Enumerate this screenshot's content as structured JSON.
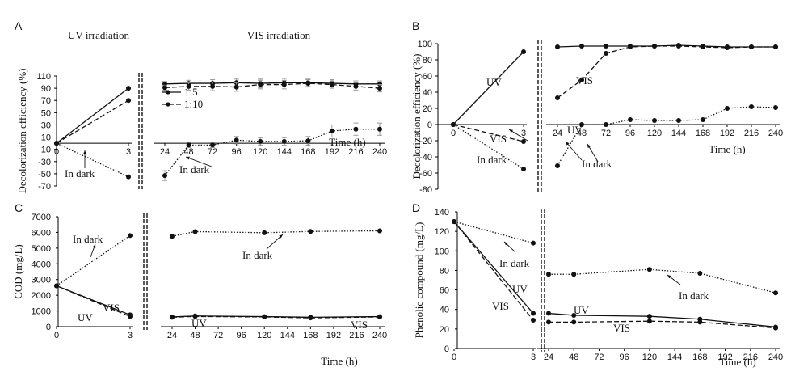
{
  "chart_data": [
    {
      "panel": "A",
      "type": "line",
      "ylabel": "Decolorization efficiency (%)",
      "xlabel": "Time (h)",
      "ylim": [
        -70,
        110
      ],
      "yticks": [
        "110",
        "90",
        "70",
        "50",
        "30",
        "10",
        "-10",
        "-30",
        "-50",
        "-70"
      ],
      "left_title": "UV irradiation",
      "right_title": "VIS irradiation",
      "left_xticks": [
        "0",
        "3"
      ],
      "right_xticks": [
        "24",
        "48",
        "72",
        "96",
        "120",
        "144",
        "168",
        "192",
        "216",
        "240"
      ],
      "legend": [
        "1:5",
        "1:10"
      ],
      "annotations": [
        "In dark",
        "In dark"
      ],
      "series": [
        {
          "name": "1:5",
          "style": "solid",
          "left": [
            [
              0,
              0
            ],
            [
              3,
              90
            ]
          ],
          "right": [
            [
              24,
              97
            ],
            [
              48,
              98
            ],
            [
              72,
              98
            ],
            [
              96,
              99
            ],
            [
              120,
              98
            ],
            [
              144,
              99
            ],
            [
              168,
              99
            ],
            [
              192,
              98
            ],
            [
              216,
              97
            ],
            [
              240,
              97
            ]
          ],
          "error": [
            4,
            5,
            6,
            6,
            7,
            7,
            6,
            6,
            5,
            5
          ]
        },
        {
          "name": "1:10",
          "style": "dashed",
          "left": [
            [
              0,
              0
            ],
            [
              3,
              70
            ]
          ],
          "right": [
            [
              24,
              91
            ],
            [
              48,
              93
            ],
            [
              72,
              93
            ],
            [
              96,
              92
            ],
            [
              120,
              96
            ],
            [
              144,
              96
            ],
            [
              168,
              98
            ],
            [
              192,
              96
            ],
            [
              216,
              93
            ],
            [
              240,
              90
            ]
          ],
          "error": [
            4,
            6,
            7,
            7,
            7,
            7,
            6,
            6,
            6,
            6
          ]
        },
        {
          "name": "In dark",
          "style": "dotted",
          "left": [
            [
              0,
              0
            ],
            [
              3,
              -55
            ]
          ],
          "right": [
            [
              24,
              -53
            ],
            [
              48,
              -3
            ],
            [
              72,
              -3
            ],
            [
              96,
              5
            ],
            [
              120,
              3
            ],
            [
              144,
              3
            ],
            [
              168,
              4
            ],
            [
              192,
              20
            ],
            [
              216,
              23
            ],
            [
              240,
              23
            ]
          ],
          "error": [
            8,
            4,
            4,
            6,
            6,
            6,
            7,
            10,
            10,
            10
          ]
        }
      ]
    },
    {
      "panel": "B",
      "type": "line",
      "ylabel": "Decolorization efficiency (%)",
      "xlabel": "Time (h)",
      "ylim": [
        -80,
        100
      ],
      "yticks": [
        "100",
        "80",
        "60",
        "40",
        "20",
        "0",
        "-20",
        "-40",
        "-60",
        "-80"
      ],
      "left_xticks": [
        "0",
        "3"
      ],
      "right_xticks": [
        "24",
        "48",
        "72",
        "96",
        "120",
        "144",
        "168",
        "192",
        "216",
        "240"
      ],
      "annotations": [
        "UV",
        "VIS",
        "In dark",
        "UV",
        "VIS",
        "In dark"
      ],
      "series": [
        {
          "name": "UV",
          "style": "solid",
          "left": [
            [
              0,
              0
            ],
            [
              3,
              90
            ]
          ],
          "right": [
            [
              24,
              96
            ],
            [
              48,
              97
            ],
            [
              72,
              97
            ],
            [
              96,
              97
            ],
            [
              120,
              97
            ],
            [
              144,
              98
            ],
            [
              168,
              97
            ],
            [
              192,
              96
            ],
            [
              216,
              96
            ],
            [
              240,
              96
            ]
          ]
        },
        {
          "name": "VIS",
          "style": "dashed",
          "left": [
            [
              0,
              0
            ],
            [
              3,
              -21
            ]
          ],
          "right": [
            [
              24,
              33
            ],
            [
              48,
              55
            ],
            [
              72,
              88
            ],
            [
              96,
              96
            ],
            [
              120,
              97
            ],
            [
              144,
              97
            ],
            [
              168,
              96
            ],
            [
              192,
              95
            ],
            [
              216,
              96
            ],
            [
              240,
              96
            ]
          ]
        },
        {
          "name": "In dark",
          "style": "dotted",
          "left": [
            [
              0,
              0
            ],
            [
              3,
              -55
            ]
          ],
          "right": [
            [
              24,
              -51
            ],
            [
              48,
              0
            ],
            [
              72,
              0
            ],
            [
              96,
              6
            ],
            [
              120,
              5
            ],
            [
              144,
              5
            ],
            [
              168,
              6
            ],
            [
              192,
              20
            ],
            [
              216,
              22
            ],
            [
              240,
              21
            ]
          ]
        }
      ]
    },
    {
      "panel": "C",
      "type": "line",
      "ylabel": "COD (mg/L)",
      "xlabel": "Time (h)",
      "ylim": [
        0,
        7000
      ],
      "yticks": [
        "7000",
        "6000",
        "5000",
        "4000",
        "3000",
        "2000",
        "1000",
        "0"
      ],
      "left_xticks": [
        "0",
        "3"
      ],
      "right_xticks": [
        "24",
        "48",
        "72",
        "96",
        "120",
        "144",
        "168",
        "192",
        "216",
        "240"
      ],
      "annotations": [
        "In dark",
        "UV",
        "VIS",
        "In dark",
        "UV",
        "VIS"
      ],
      "series": [
        {
          "name": "In dark",
          "style": "dotted",
          "left": [
            [
              0,
              2600
            ],
            [
              3,
              5800
            ]
          ],
          "right": [
            [
              24,
              5750
            ],
            [
              48,
              6050
            ],
            [
              120,
              5980
            ],
            [
              168,
              6060
            ],
            [
              240,
              6100
            ]
          ]
        },
        {
          "name": "UV",
          "style": "solid",
          "left": [
            [
              0,
              2600
            ],
            [
              3,
              750
            ]
          ],
          "right": [
            [
              24,
              620
            ],
            [
              48,
              680
            ],
            [
              120,
              640
            ],
            [
              168,
              600
            ],
            [
              240,
              640
            ]
          ]
        },
        {
          "name": "VIS",
          "style": "dashed",
          "left": [
            [
              0,
              2600
            ],
            [
              3,
              650
            ]
          ],
          "right": [
            [
              24,
              600
            ],
            [
              48,
              650
            ],
            [
              120,
              620
            ],
            [
              168,
              560
            ],
            [
              240,
              620
            ]
          ]
        }
      ]
    },
    {
      "panel": "D",
      "type": "line",
      "ylabel": "Phenolic compound (mg/L)",
      "xlabel": "Time (h)",
      "ylim": [
        0,
        140
      ],
      "yticks": [
        "140",
        "120",
        "100",
        "80",
        "60",
        "40",
        "20",
        "0"
      ],
      "left_xticks": [
        "0",
        "3"
      ],
      "right_xticks": [
        "24",
        "48",
        "72",
        "96",
        "120",
        "144",
        "168",
        "192",
        "216",
        "240"
      ],
      "annotations": [
        "In dark",
        "UV",
        "VIS",
        "In dark",
        "UV",
        "VIS"
      ],
      "series": [
        {
          "name": "In dark",
          "style": "dotted",
          "left": [
            [
              0,
              130
            ],
            [
              3,
              108
            ]
          ],
          "right": [
            [
              24,
              76
            ],
            [
              48,
              76
            ],
            [
              120,
              81
            ],
            [
              168,
              77
            ],
            [
              240,
              57
            ]
          ]
        },
        {
          "name": "UV",
          "style": "solid",
          "left": [
            [
              0,
              130
            ],
            [
              3,
              36
            ]
          ],
          "right": [
            [
              24,
              36
            ],
            [
              48,
              34
            ],
            [
              120,
              33
            ],
            [
              168,
              30
            ],
            [
              240,
              22
            ]
          ]
        },
        {
          "name": "VIS",
          "style": "dashed",
          "left": [
            [
              0,
              130
            ],
            [
              3,
              29
            ]
          ],
          "right": [
            [
              24,
              27
            ],
            [
              48,
              27
            ],
            [
              120,
              28
            ],
            [
              168,
              27
            ],
            [
              240,
              21
            ]
          ]
        }
      ]
    }
  ]
}
